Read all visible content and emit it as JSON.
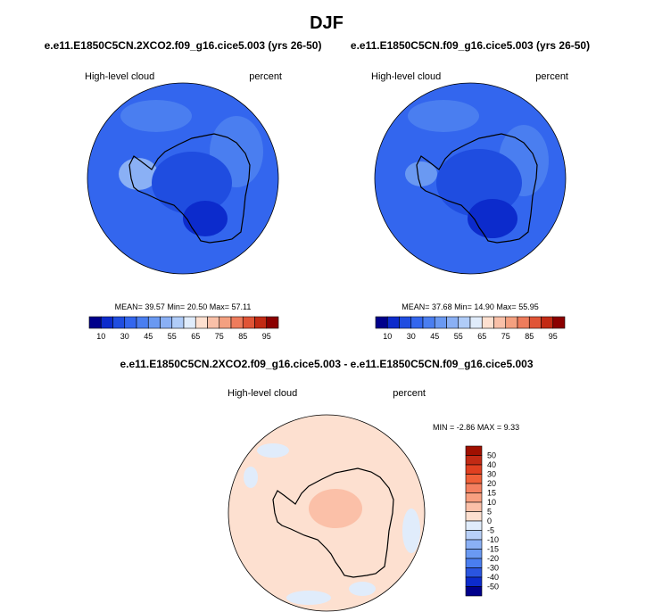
{
  "title": "DJF",
  "panels": [
    {
      "title": "e.e11.E1850C5CN.2XCO2.f09_g16.cice5.003 (yrs 26-50)",
      "left_label": "High-level cloud",
      "right_label": "percent",
      "stats": [
        {
          "label": "MEAN=",
          "value": "39.57"
        },
        {
          "label": "Min=",
          "value": "20.50"
        },
        {
          "label": "Max=",
          "value": "57.11"
        }
      ]
    },
    {
      "title": "e.e11.E1850C5CN.f09_g16.cice5.003 (yrs 26-50)",
      "left_label": "High-level cloud",
      "right_label": "percent",
      "stats": [
        {
          "label": "MEAN=",
          "value": "37.68"
        },
        {
          "label": "Min=",
          "value": "14.90"
        },
        {
          "label": "Max=",
          "value": "55.95"
        }
      ]
    }
  ],
  "colorbar": {
    "labels": [
      "10",
      "30",
      "45",
      "55",
      "65",
      "75",
      "85",
      "95"
    ],
    "colors": [
      "#00008b",
      "#0c2bcc",
      "#1f4de0",
      "#3366ee",
      "#4a7ef0",
      "#6a99f2",
      "#8ab0f5",
      "#b0ccf8",
      "#e0ecfb",
      "#fde0d0",
      "#f9c0a8",
      "#f4a080",
      "#ee7c5c",
      "#e05436",
      "#c22a14",
      "#8b0000"
    ]
  },
  "diff_panel": {
    "title": "e.e11.E1850C5CN.2XCO2.f09_g16.cice5.003 - e.e11.E1850C5CN.f09_g16.cice5.003",
    "left_label": "High-level cloud",
    "right_label": "percent",
    "stats": [
      {
        "label": "MIN =",
        "value": "-2.86"
      },
      {
        "label": "MAX =",
        "value": "9.33"
      }
    ],
    "colorbar": {
      "labels": [
        "50",
        "40",
        "30",
        "20",
        "15",
        "10",
        "5",
        "0",
        "-5",
        "-10",
        "-15",
        "-20",
        "-30",
        "-40",
        "-50"
      ],
      "colors": [
        "#a01000",
        "#c22a14",
        "#e04020",
        "#f06038",
        "#f48060",
        "#f8a080",
        "#fbc0a8",
        "#fde0d0",
        "#e0ecfb",
        "#b8d0f8",
        "#8ab0f5",
        "#6a99f2",
        "#4a7ef0",
        "#2a55e0",
        "#0c2bcc",
        "#00008b"
      ]
    }
  }
}
